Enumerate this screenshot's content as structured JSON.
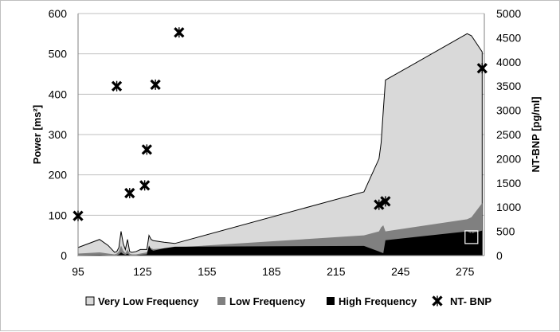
{
  "chart_data": {
    "type": "area",
    "x_ticks": [
      95,
      125,
      155,
      185,
      215,
      245,
      275
    ],
    "xlim": [
      95,
      284
    ],
    "y_left": {
      "label": "Power [ms²]",
      "lim": [
        0,
        600
      ],
      "ticks": [
        0,
        100,
        200,
        300,
        400,
        500,
        600
      ]
    },
    "y_right": {
      "label": "NT-BNP [pg/ml]",
      "lim": [
        0,
        5000
      ],
      "ticks": [
        0,
        500,
        1000,
        1500,
        2000,
        2500,
        3000,
        3500,
        4000,
        4500,
        5000
      ]
    },
    "grid": "horizontal",
    "legend_position": "bottom",
    "series": [
      {
        "name": "Very Low Frequency",
        "kind": "area",
        "axis": "left",
        "color": "#d9d9d9",
        "x": [
          95,
          105,
          109,
          112,
          113,
          114,
          115,
          116,
          117,
          118,
          119,
          120,
          122,
          124,
          127,
          128,
          129,
          130,
          135,
          140,
          228,
          235,
          236,
          237,
          238,
          276,
          278,
          283
        ],
        "y": [
          20,
          40,
          25,
          8,
          10,
          20,
          60,
          30,
          15,
          40,
          10,
          8,
          10,
          15,
          15,
          50,
          40,
          37,
          33,
          30,
          158,
          240,
          280,
          360,
          435,
          550,
          545,
          505
        ]
      },
      {
        "name": "Low Frequency",
        "kind": "area",
        "axis": "left",
        "color": "#808080",
        "x": [
          95,
          105,
          109,
          112,
          113,
          114,
          115,
          116,
          117,
          118,
          119,
          120,
          122,
          124,
          127,
          128,
          129,
          130,
          135,
          140,
          228,
          235,
          236,
          237,
          238,
          276,
          278,
          283
        ],
        "y": [
          5,
          8,
          5,
          3,
          5,
          10,
          25,
          12,
          6,
          15,
          5,
          3,
          3,
          5,
          8,
          20,
          18,
          16,
          18,
          20,
          50,
          60,
          70,
          75,
          60,
          90,
          95,
          130
        ]
      },
      {
        "name": "High Frequency",
        "kind": "area",
        "axis": "left",
        "color": "#000000",
        "x": [
          95,
          105,
          109,
          112,
          113,
          114,
          115,
          116,
          117,
          118,
          119,
          120,
          122,
          124,
          127,
          128,
          129,
          130,
          135,
          140,
          228,
          235,
          236,
          237,
          238,
          276,
          278,
          283
        ],
        "y": [
          1,
          2,
          1,
          0.5,
          1,
          3,
          8,
          4,
          2,
          5,
          1,
          0.5,
          1,
          2,
          3,
          25,
          15,
          12,
          18,
          22,
          24,
          10,
          8,
          6,
          38,
          60,
          55,
          62
        ]
      },
      {
        "name": "NT- BNP",
        "kind": "scatter",
        "axis": "right",
        "color": "#000000",
        "x": [
          95,
          113,
          119,
          126,
          127,
          131,
          142,
          235,
          238,
          278,
          283
        ],
        "y": [
          820,
          3500,
          1290,
          1450,
          2190,
          3530,
          4610,
          1050,
          1120,
          380,
          3870
        ]
      }
    ]
  }
}
